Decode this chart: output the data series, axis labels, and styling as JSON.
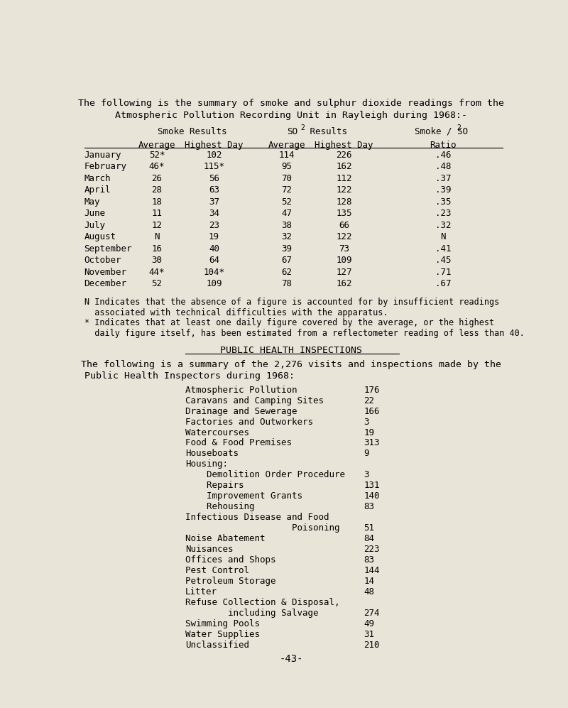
{
  "bg_color": "#e8e4d8",
  "page_width": 8.0,
  "page_height": 9.97,
  "title_line1": "The following is the summary of smoke and sulphur dioxide readings from the",
  "title_line2": "Atmospheric Pollution Recording Unit in Rayleigh during 1968:-",
  "smoke_header": "Smoke Results",
  "so2_header": "SO2 Results",
  "ratio_header": "Smoke / SO2",
  "col_headers": [
    "Average",
    "Highest Day",
    "Average",
    "Highest Day",
    "Ratio"
  ],
  "months": [
    "January",
    "February",
    "March",
    "April",
    "May",
    "June",
    "July",
    "August",
    "September",
    "October",
    "November",
    "December"
  ],
  "smoke_avg": [
    "52*",
    "46*",
    "26",
    "28",
    "18",
    "11",
    "12",
    "N",
    "16",
    "30",
    "44*",
    "52"
  ],
  "smoke_high": [
    "102",
    "115*",
    "56",
    "63",
    "37",
    "34",
    "23",
    "19",
    "40",
    "64",
    "104*",
    "109"
  ],
  "so2_avg": [
    "114",
    "95",
    "70",
    "72",
    "52",
    "47",
    "38",
    "32",
    "39",
    "67",
    "62",
    "78"
  ],
  "so2_high": [
    "226",
    "162",
    "112",
    "122",
    "128",
    "135",
    "66",
    "122",
    "73",
    "109",
    "127",
    "162"
  ],
  "ratio": [
    ".46",
    ".48",
    ".37",
    ".39",
    ".35",
    ".23",
    ".32",
    "N",
    ".41",
    ".45",
    ".71",
    ".67"
  ],
  "note_n_1": "N Indicates that the absence of a figure is accounted for by insufficient readings",
  "note_n_2": "  associated with technical difficulties with the apparatus.",
  "note_star_1": "* Indicates that at least one daily figure covered by the average, or the highest",
  "note_star_2": "  daily figure itself, has been estimated from a reflectometer reading of less than 40.",
  "section_title": "PUBLIC HEALTH INSPECTIONS",
  "section_intro1": "The following is a summary of the 2,276 visits and inspections made by the",
  "section_intro2": "Public Health Inspectors during 1968:",
  "inspections": [
    [
      "Atmospheric Pollution",
      "176"
    ],
    [
      "Caravans and Camping Sites",
      "22"
    ],
    [
      "Drainage and Sewerage",
      "166"
    ],
    [
      "Factories and Outworkers",
      "3"
    ],
    [
      "Watercourses",
      "19"
    ],
    [
      "Food & Food Premises",
      "313"
    ],
    [
      "Houseboats",
      "9"
    ],
    [
      "Housing:",
      ""
    ],
    [
      "    Demolition Order Procedure",
      "3"
    ],
    [
      "    Repairs",
      "131"
    ],
    [
      "    Improvement Grants",
      "140"
    ],
    [
      "    Rehousing",
      "83"
    ],
    [
      "Infectious Disease and Food",
      ""
    ],
    [
      "                    Poisoning",
      "51"
    ],
    [
      "Noise Abatement",
      "84"
    ],
    [
      "Nuisances",
      "223"
    ],
    [
      "Offices and Shops",
      "83"
    ],
    [
      "Pest Control",
      "144"
    ],
    [
      "Petroleum Storage",
      "14"
    ],
    [
      "Litter",
      "48"
    ],
    [
      "Refuse Collection & Disposal,",
      ""
    ],
    [
      "        including Salvage",
      "274"
    ],
    [
      "Swimming Pools",
      "49"
    ],
    [
      "Water Supplies",
      "31"
    ],
    [
      "Unclassified",
      "210"
    ]
  ],
  "page_number": "-43-",
  "font_family": "monospace",
  "font_size": 9.0,
  "title_font_size": 9.5
}
